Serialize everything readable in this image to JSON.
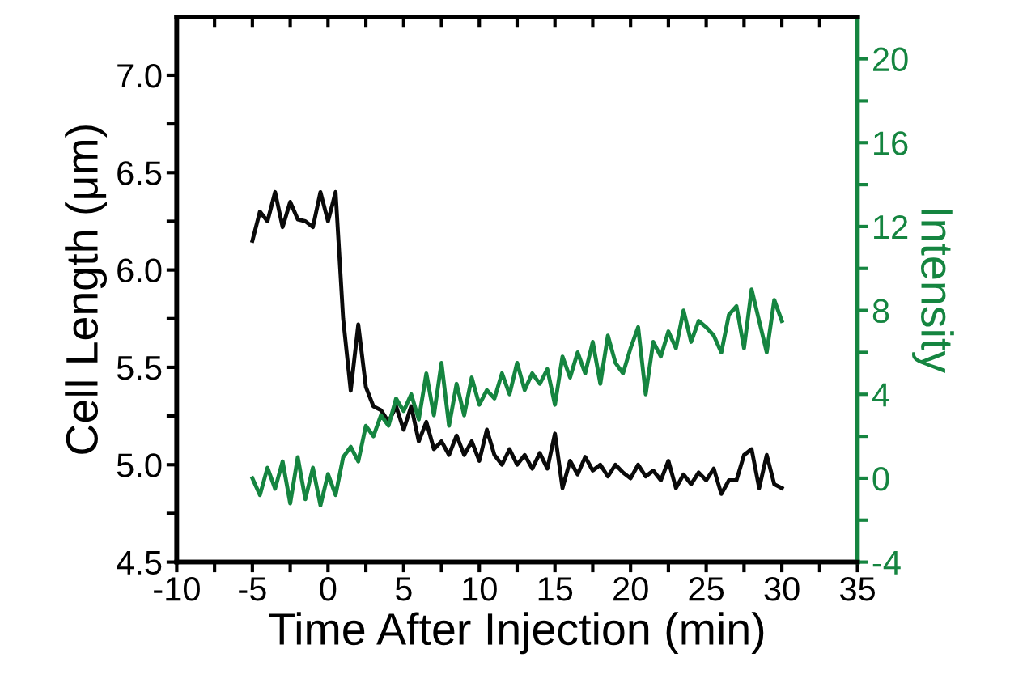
{
  "chart_data": {
    "type": "line",
    "xlabel": "Time After Injection (min)",
    "ylabel": "Cell Length (μm)",
    "y2label": "Intensity",
    "x": [
      -5,
      -4.5,
      -4,
      -3.5,
      -3,
      -2.5,
      -2,
      -1.5,
      -1,
      -0.5,
      0,
      0.5,
      1,
      1.5,
      2,
      2.5,
      3,
      3.5,
      4,
      4.5,
      5,
      5.5,
      6,
      6.5,
      7,
      7.5,
      8,
      8.5,
      9,
      9.5,
      10,
      10.5,
      11,
      11.5,
      12,
      12.5,
      13,
      13.5,
      14,
      14.5,
      15,
      15.5,
      16,
      16.5,
      17,
      17.5,
      18,
      18.5,
      19,
      19.5,
      20,
      20.5,
      21,
      21.5,
      22,
      22.5,
      23,
      23.5,
      24,
      24.5,
      25,
      25.5,
      26,
      26.5,
      27,
      27.5,
      28,
      28.5,
      29,
      29.5,
      30
    ],
    "series": [
      {
        "color": "#0a0a0a",
        "values": [
          6.15,
          6.3,
          6.25,
          6.4,
          6.22,
          6.35,
          6.26,
          6.25,
          6.22,
          6.4,
          6.25,
          6.4,
          5.75,
          5.38,
          5.72,
          5.4,
          5.3,
          5.28,
          5.22,
          5.3,
          5.18,
          5.3,
          5.12,
          5.22,
          5.08,
          5.12,
          5.05,
          5.15,
          5.05,
          5.12,
          5.02,
          5.18,
          5.05,
          5.0,
          5.08,
          5.0,
          5.05,
          4.98,
          5.06,
          4.98,
          5.16,
          4.88,
          5.02,
          4.95,
          5.04,
          4.97,
          5.0,
          4.94,
          5.0,
          4.96,
          4.93,
          5.0,
          4.94,
          4.97,
          4.92,
          5.02,
          4.88,
          4.95,
          4.9,
          4.96,
          4.92,
          4.98,
          4.85,
          4.92,
          4.92,
          5.05,
          5.08,
          4.88,
          5.05,
          4.9,
          4.88
        ]
      },
      {
        "color": "#158540",
        "axis": "y2",
        "values": [
          0.0,
          -0.8,
          0.5,
          -0.5,
          0.8,
          -1.2,
          1.0,
          -1.0,
          0.5,
          -1.3,
          0.2,
          -0.8,
          1.0,
          1.5,
          0.8,
          2.5,
          2.0,
          3.0,
          2.5,
          3.8,
          3.2,
          4.0,
          2.8,
          5.0,
          3.0,
          5.5,
          2.5,
          4.5,
          3.0,
          4.8,
          3.5,
          4.2,
          3.8,
          5.0,
          4.0,
          5.5,
          4.2,
          5.0,
          4.5,
          5.2,
          3.5,
          5.8,
          4.8,
          6.0,
          5.0,
          6.5,
          4.5,
          6.8,
          5.5,
          5.0,
          6.2,
          7.2,
          4.0,
          6.5,
          5.8,
          7.0,
          6.2,
          8.0,
          6.5,
          7.5,
          7.2,
          6.8,
          6.0,
          7.8,
          8.2,
          6.2,
          9.0,
          7.5,
          6.0,
          8.5,
          7.5
        ]
      }
    ],
    "xlim": [
      -10,
      35
    ],
    "xticks": [
      -10,
      {
        "value": -7.5,
        "label": null
      },
      -5,
      {
        "value": -2.5,
        "label": null
      },
      0,
      {
        "value": 2.5,
        "label": null
      },
      5,
      {
        "value": 7.5,
        "label": null
      },
      10,
      {
        "value": 12.5,
        "label": null
      },
      15,
      {
        "value": 17.5,
        "label": null
      },
      20,
      {
        "value": 22.5,
        "label": null
      },
      25,
      {
        "value": 27.5,
        "label": null
      },
      30,
      {
        "value": 32.5,
        "label": null
      },
      35
    ],
    "ylim": [
      4.5,
      7.3
    ],
    "yticks": [
      {
        "value": 4.5,
        "label": "4.5"
      },
      {
        "value": 4.75,
        "label": null
      },
      {
        "value": 5.0,
        "label": "5.0"
      },
      {
        "value": 5.25,
        "label": null
      },
      {
        "value": 5.5,
        "label": "5.5"
      },
      {
        "value": 5.75,
        "label": null
      },
      {
        "value": 6.0,
        "label": "6.0"
      },
      {
        "value": 6.25,
        "label": null
      },
      {
        "value": 6.5,
        "label": "6.5"
      },
      {
        "value": 6.75,
        "label": null
      },
      {
        "value": 7.0,
        "label": "7.0"
      }
    ],
    "y2lim": [
      -4,
      22
    ],
    "y2ticks": [
      -4,
      {
        "value": -2,
        "label": null
      },
      0,
      {
        "value": 2,
        "label": null
      },
      4,
      {
        "value": 6,
        "label": null
      },
      8,
      {
        "value": 10,
        "label": null
      },
      12,
      {
        "value": 14,
        "label": null
      },
      16,
      {
        "value": 18,
        "label": null
      },
      20
    ],
    "marker": "none",
    "line_style": "solid"
  }
}
